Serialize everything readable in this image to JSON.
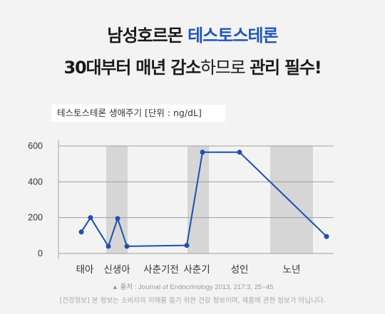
{
  "headline": {
    "line1_plain": "남성호르몬 ",
    "line1_accent": "테스토스테론",
    "line2_bold": "30대부터 매년 감소",
    "line2_light": "하므로 ",
    "line2_tail": "관리 필수!"
  },
  "colors": {
    "accent": "#1f55b8",
    "line": "#1f4fb0",
    "band": "#d6d6d6",
    "grid": "#a0a0a0",
    "background": "#f3f3f3"
  },
  "chart_data": {
    "type": "line",
    "title": "테스토스테론 생애주기 [단위 : ng/dL]",
    "ylim": [
      0,
      600
    ],
    "yticks": [
      0,
      200,
      400,
      600
    ],
    "grid": true,
    "categories": [
      "태아",
      "신생아",
      "사춘기전",
      "사춘기",
      "성인",
      "노년"
    ],
    "x": [
      0,
      1,
      2,
      3,
      4,
      5,
      6,
      7,
      8
    ],
    "point_stage": [
      "태아",
      "태아",
      "신생아",
      "신생아",
      "신생아",
      "사춘기전",
      "사춘기",
      "성인",
      "노년"
    ],
    "series": [
      {
        "values": [
          120,
          200,
          40,
          195,
          40,
          45,
          565,
          565,
          95
        ]
      }
    ],
    "shaded_stages": [
      "신생아",
      "사춘기",
      "노년"
    ]
  },
  "footer": {
    "source": "▲ 출처 : Journal of Endocrinology 2013, 217:3, 25~45",
    "info": "[건강정보] 본 정보는 소비자의 이해를 돕기 위한 건강 정보이며, 제품에 관한 정보가 아닙니다."
  }
}
